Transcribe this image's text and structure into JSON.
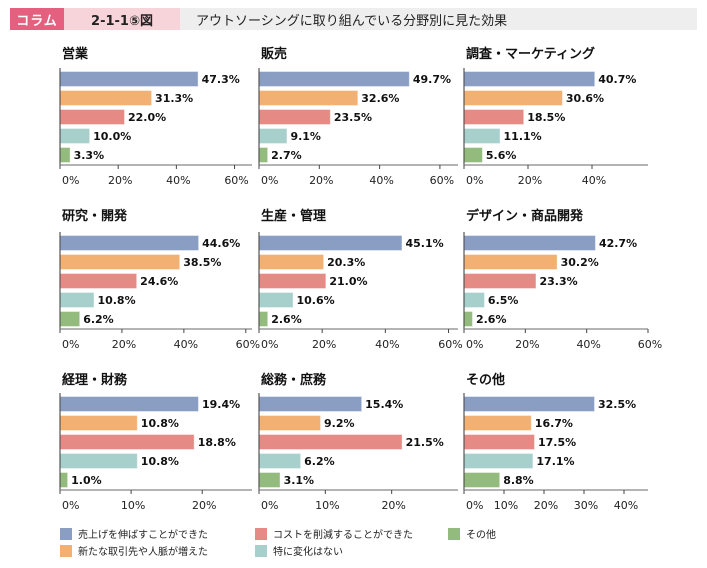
{
  "header": {
    "tag": "コラム",
    "figure_number": "2-1-1⑤図",
    "title": "アウトソーシングに取り組んでいる分野別に見た効果"
  },
  "chart_data": {
    "type": "bar",
    "orientation": "horizontal",
    "title": "アウトソーシングに取り組んでいる分野別に見た効果",
    "value_suffix": "%",
    "series_names": [
      "売上げを伸ばすことができた",
      "新たな取引先や人脈が増えた",
      "コストを削減することができた",
      "特に変化はない",
      "その他"
    ],
    "series_colors": [
      "#8a9ec4",
      "#f2b072",
      "#e58a85",
      "#a7cfcb",
      "#94bb7e"
    ],
    "panels": [
      {
        "title": "営業",
        "values": [
          47.3,
          31.3,
          22.0,
          10.0,
          3.3
        ],
        "labels": [
          "47.3%",
          "31.3%",
          "22.0%",
          "10.0%",
          "3.3%"
        ],
        "xlim": [
          0,
          66
        ],
        "ticks": [
          0,
          20,
          40,
          60
        ],
        "tick_labels": [
          "0%",
          "20%",
          "40%",
          "60%"
        ]
      },
      {
        "title": "販売",
        "values": [
          49.7,
          32.6,
          23.5,
          9.1,
          2.7
        ],
        "labels": [
          "49.7%",
          "32.6%",
          "23.5%",
          "9.1%",
          "2.7%"
        ],
        "xlim": [
          0,
          66
        ],
        "ticks": [
          0,
          20,
          40,
          60
        ],
        "tick_labels": [
          "0%",
          "20%",
          "40%",
          "60%"
        ]
      },
      {
        "title": "調査・マーケティング",
        "values": [
          40.7,
          30.6,
          18.5,
          11.1,
          5.6
        ],
        "labels": [
          "40.7%",
          "30.6%",
          "18.5%",
          "11.1%",
          "5.6%"
        ],
        "xlim": [
          0,
          57.5
        ],
        "ticks": [
          0,
          20,
          40
        ],
        "tick_labels": [
          "0%",
          "20%",
          "40%"
        ]
      },
      {
        "title": "研究・開発",
        "values": [
          44.6,
          38.5,
          24.6,
          10.8,
          6.2
        ],
        "labels": [
          "44.6%",
          "38.5%",
          "24.6%",
          "10.8%",
          "6.2%"
        ],
        "xlim": [
          0,
          62
        ],
        "ticks": [
          0,
          20,
          40,
          60
        ],
        "tick_labels": [
          "0%",
          "20%",
          "40%",
          "60%"
        ]
      },
      {
        "title": "生産・管理",
        "values": [
          45.1,
          20.3,
          21.0,
          10.6,
          2.6
        ],
        "labels": [
          "45.1%",
          "20.3%",
          "21.0%",
          "10.6%",
          "2.6%"
        ],
        "xlim": [
          0,
          63
        ],
        "ticks": [
          0,
          20,
          40,
          60
        ],
        "tick_labels": [
          "0%",
          "20%",
          "40%",
          "60%"
        ]
      },
      {
        "title": "デザイン・商品開発",
        "values": [
          42.7,
          30.2,
          23.3,
          6.5,
          2.6
        ],
        "labels": [
          "42.7%",
          "30.2%",
          "23.3%",
          "6.5%",
          "2.6%"
        ],
        "xlim": [
          0,
          60
        ],
        "ticks": [
          0,
          20,
          40,
          60
        ],
        "tick_labels": [
          "0%",
          "20%",
          "40%",
          "60%"
        ]
      },
      {
        "title": "経理・財務",
        "values": [
          19.4,
          10.8,
          18.8,
          10.8,
          1.0
        ],
        "labels": [
          "19.4%",
          "10.8%",
          "18.8%",
          "10.8%",
          "1.0%"
        ],
        "xlim": [
          0,
          27
        ],
        "ticks": [
          0,
          10,
          20
        ],
        "tick_labels": [
          "0%",
          "10%",
          "20%"
        ]
      },
      {
        "title": "総務・庶務",
        "values": [
          15.4,
          9.2,
          21.5,
          6.2,
          3.1
        ],
        "labels": [
          "15.4%",
          "9.2%",
          "21.5%",
          "6.2%",
          "3.1%"
        ],
        "xlim": [
          0,
          30
        ],
        "ticks": [
          0,
          10,
          20
        ],
        "tick_labels": [
          "0%",
          "10%",
          "20%"
        ]
      },
      {
        "title": "その他",
        "values": [
          32.5,
          16.7,
          17.5,
          17.1,
          8.8
        ],
        "labels": [
          "32.5%",
          "16.7%",
          "17.5%",
          "17.1%",
          "8.8%"
        ],
        "xlim": [
          0,
          46
        ],
        "ticks": [
          0,
          10,
          20,
          30,
          40
        ],
        "tick_labels": [
          "0%",
          "10%",
          "20%",
          "30%",
          "40%"
        ]
      }
    ],
    "legend": {
      "placement": "bottom",
      "items": [
        "売上げを伸ばすことができた",
        "新たな取引先や人脈が増えた",
        "コストを削減することができた",
        "特に変化はない",
        "その他"
      ]
    },
    "grid": false
  }
}
